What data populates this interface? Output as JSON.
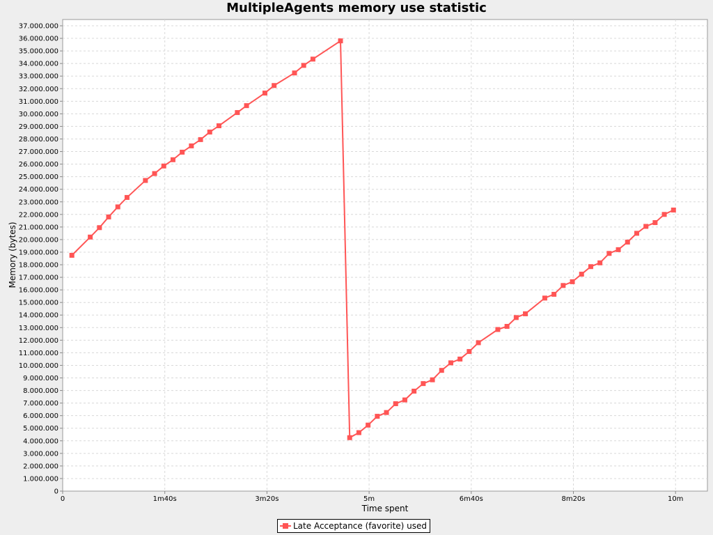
{
  "chart_data": {
    "type": "line",
    "title": "MultipleAgents memory use statistic",
    "xlabel": "Time spent",
    "ylabel": "Memory (bytes)",
    "xlim": [
      0,
      630
    ],
    "ylim": [
      0,
      37000000
    ],
    "grid": true,
    "legend_position": "bottom-center",
    "x_ticks": [
      {
        "value": 0,
        "label": "0"
      },
      {
        "value": 100,
        "label": "1m40s"
      },
      {
        "value": 200,
        "label": "3m20s"
      },
      {
        "value": 300,
        "label": "5m"
      },
      {
        "value": 400,
        "label": "6m40s"
      },
      {
        "value": 500,
        "label": "8m20s"
      },
      {
        "value": 600,
        "label": "10m"
      }
    ],
    "y_ticks": [
      {
        "value": 0,
        "label": "0"
      },
      {
        "value": 1000000,
        "label": "1.000.000"
      },
      {
        "value": 2000000,
        "label": "2.000.000"
      },
      {
        "value": 3000000,
        "label": "3.000.000"
      },
      {
        "value": 4000000,
        "label": "4.000.000"
      },
      {
        "value": 5000000,
        "label": "5.000.000"
      },
      {
        "value": 6000000,
        "label": "6.000.000"
      },
      {
        "value": 7000000,
        "label": "7.000.000"
      },
      {
        "value": 8000000,
        "label": "8.000.000"
      },
      {
        "value": 9000000,
        "label": "9.000.000"
      },
      {
        "value": 10000000,
        "label": "10.000.000"
      },
      {
        "value": 11000000,
        "label": "11.000.000"
      },
      {
        "value": 12000000,
        "label": "12.000.000"
      },
      {
        "value": 13000000,
        "label": "13.000.000"
      },
      {
        "value": 14000000,
        "label": "14.000.000"
      },
      {
        "value": 15000000,
        "label": "15.000.000"
      },
      {
        "value": 16000000,
        "label": "16.000.000"
      },
      {
        "value": 17000000,
        "label": "17.000.000"
      },
      {
        "value": 18000000,
        "label": "18.000.000"
      },
      {
        "value": 19000000,
        "label": "19.000.000"
      },
      {
        "value": 20000000,
        "label": "20.000.000"
      },
      {
        "value": 21000000,
        "label": "21.000.000"
      },
      {
        "value": 22000000,
        "label": "22.000.000"
      },
      {
        "value": 23000000,
        "label": "23.000.000"
      },
      {
        "value": 24000000,
        "label": "24.000.000"
      },
      {
        "value": 25000000,
        "label": "25.000.000"
      },
      {
        "value": 26000000,
        "label": "26.000.000"
      },
      {
        "value": 27000000,
        "label": "27.000.000"
      },
      {
        "value": 28000000,
        "label": "28.000.000"
      },
      {
        "value": 29000000,
        "label": "29.000.000"
      },
      {
        "value": 30000000,
        "label": "30.000.000"
      },
      {
        "value": 31000000,
        "label": "31.000.000"
      },
      {
        "value": 32000000,
        "label": "32.000.000"
      },
      {
        "value": 33000000,
        "label": "33.000.000"
      },
      {
        "value": 34000000,
        "label": "34.000.000"
      },
      {
        "value": 35000000,
        "label": "35.000.000"
      },
      {
        "value": 36000000,
        "label": "36.000.000"
      },
      {
        "value": 37000000,
        "label": "37.000.000"
      }
    ],
    "series": [
      {
        "name": "Late Acceptance (favorite) used",
        "color": "#ff5555",
        "marker": "square",
        "x": [
          9,
          27,
          36,
          45,
          54,
          63,
          81,
          90,
          99,
          108,
          117,
          126,
          135,
          144,
          153,
          171,
          180,
          198,
          207,
          227,
          236,
          245,
          272,
          281,
          290,
          299,
          308,
          317,
          326,
          335,
          344,
          353,
          362,
          371,
          380,
          389,
          398,
          407,
          426,
          435,
          444,
          453,
          472,
          481,
          490,
          499,
          508,
          517,
          526,
          535,
          544,
          553,
          562,
          571,
          580,
          589,
          598
        ],
        "y": [
          18750000,
          20200000,
          20950000,
          21800000,
          22600000,
          23350000,
          24700000,
          25250000,
          25850000,
          26350000,
          26950000,
          27450000,
          27950000,
          28550000,
          29050000,
          30100000,
          30650000,
          31650000,
          32250000,
          33250000,
          33850000,
          34350000,
          35800000,
          4250000,
          4650000,
          5250000,
          5950000,
          6250000,
          6950000,
          7250000,
          7950000,
          8550000,
          8850000,
          9600000,
          10200000,
          10500000,
          11100000,
          11800000,
          12850000,
          13100000,
          13800000,
          14100000,
          15350000,
          15650000,
          16350000,
          16650000,
          17250000,
          17850000,
          18150000,
          18900000,
          19200000,
          19800000,
          20500000,
          21050000,
          21350000,
          22000000,
          22350000
        ]
      }
    ]
  }
}
